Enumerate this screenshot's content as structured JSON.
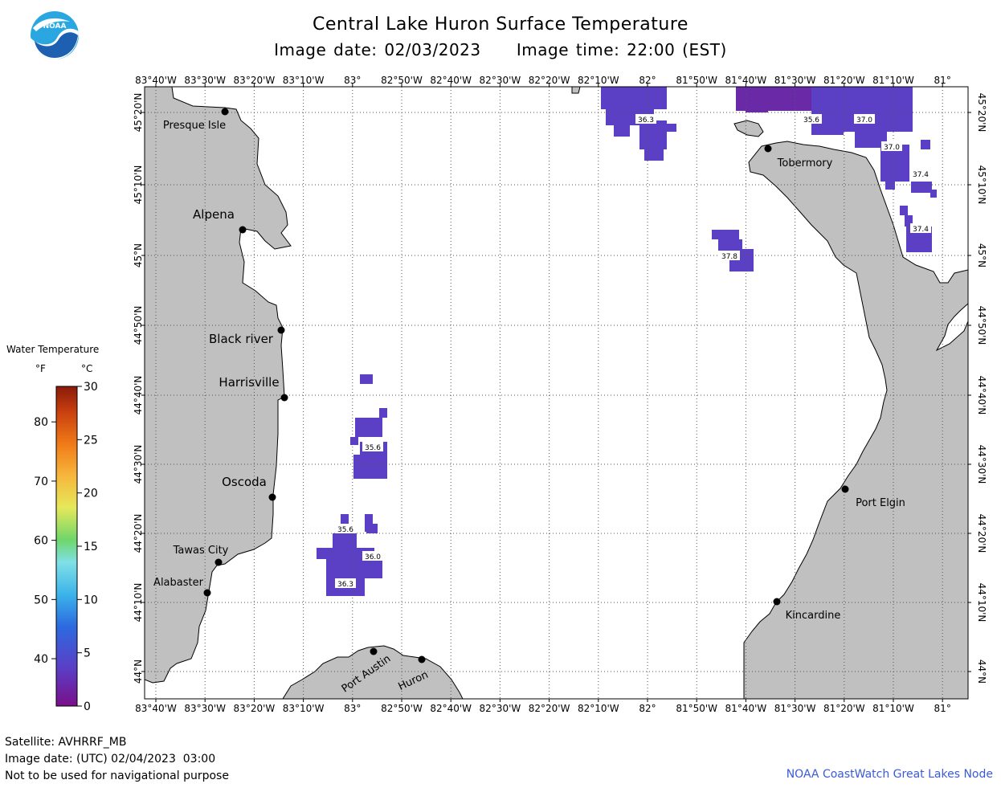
{
  "header": {
    "title": "Central Lake Huron Surface Temperature",
    "image_date_line": "Image date: 02/03/2023     Image time: 22:00 (EST)"
  },
  "logo": {
    "text": "NOAA"
  },
  "colors": {
    "land": "#c0c0c0",
    "water": "#ffffff",
    "temp_cold": "#5b3fc4",
    "temp_coldest": "#6a2aa8",
    "coast": "#000000",
    "credit": "#3b5bd6"
  },
  "map": {
    "lon_labels_top": [
      "83°40'W",
      "83°30'W",
      "83°20'W",
      "83°10'W",
      "83°",
      "82°50'W",
      "82°40'W",
      "82°30'W",
      "82°20'W",
      "82°10'W",
      "82°",
      "81°50'W",
      "81°40'W",
      "81°30'W",
      "81°20'W",
      "81°10'W",
      "81°"
    ],
    "lon_labels_bottom": [
      "83°40'W",
      "83°30'W",
      "83°20'W",
      "83°10'W",
      "83°",
      "82°50'W",
      "82°40'W",
      "82°30'W",
      "82°20'W",
      "82°10'W",
      "82°",
      "81°50'W",
      "81°40'W",
      "81°30'W",
      "81°20'W",
      "81°10'W",
      "81°"
    ],
    "lat_labels": [
      "45°20'N",
      "45°10'N",
      "45°N",
      "44°50'N",
      "44°40'N",
      "44°30'N",
      "44°20'N",
      "44°10'N",
      "44°N"
    ],
    "cities": [
      {
        "name": "Presque Isle"
      },
      {
        "name": "Alpena"
      },
      {
        "name": "Black river"
      },
      {
        "name": "Harrisville"
      },
      {
        "name": "Oscoda"
      },
      {
        "name": "Tawas City"
      },
      {
        "name": "Alabaster"
      },
      {
        "name": "Port Austin"
      },
      {
        "name": "Huron"
      },
      {
        "name": "Tobermory"
      },
      {
        "name": "Port Elgin"
      },
      {
        "name": "Kincardine"
      }
    ],
    "contour_labels": [
      "36.3",
      "35.6",
      "37.0",
      "37.0",
      "37.4",
      "37.4",
      "37.8",
      "35.6",
      "35.6",
      "36.0",
      "36.3"
    ]
  },
  "legend": {
    "title": "Water Temperature",
    "f_unit": "°F",
    "c_unit": "°C",
    "f_ticks": [
      "80",
      "70",
      "60",
      "50",
      "40"
    ],
    "c_ticks": [
      "30",
      "25",
      "20",
      "15",
      "10",
      "5",
      "0"
    ]
  },
  "footer": {
    "satellite": "Satellite: AVHRRF_MB",
    "utc_date": "Image date: (UTC) 02/04/2023  03:00",
    "disclaimer": "Not to be used for navigational purpose",
    "credit": "NOAA CoastWatch Great Lakes Node"
  }
}
